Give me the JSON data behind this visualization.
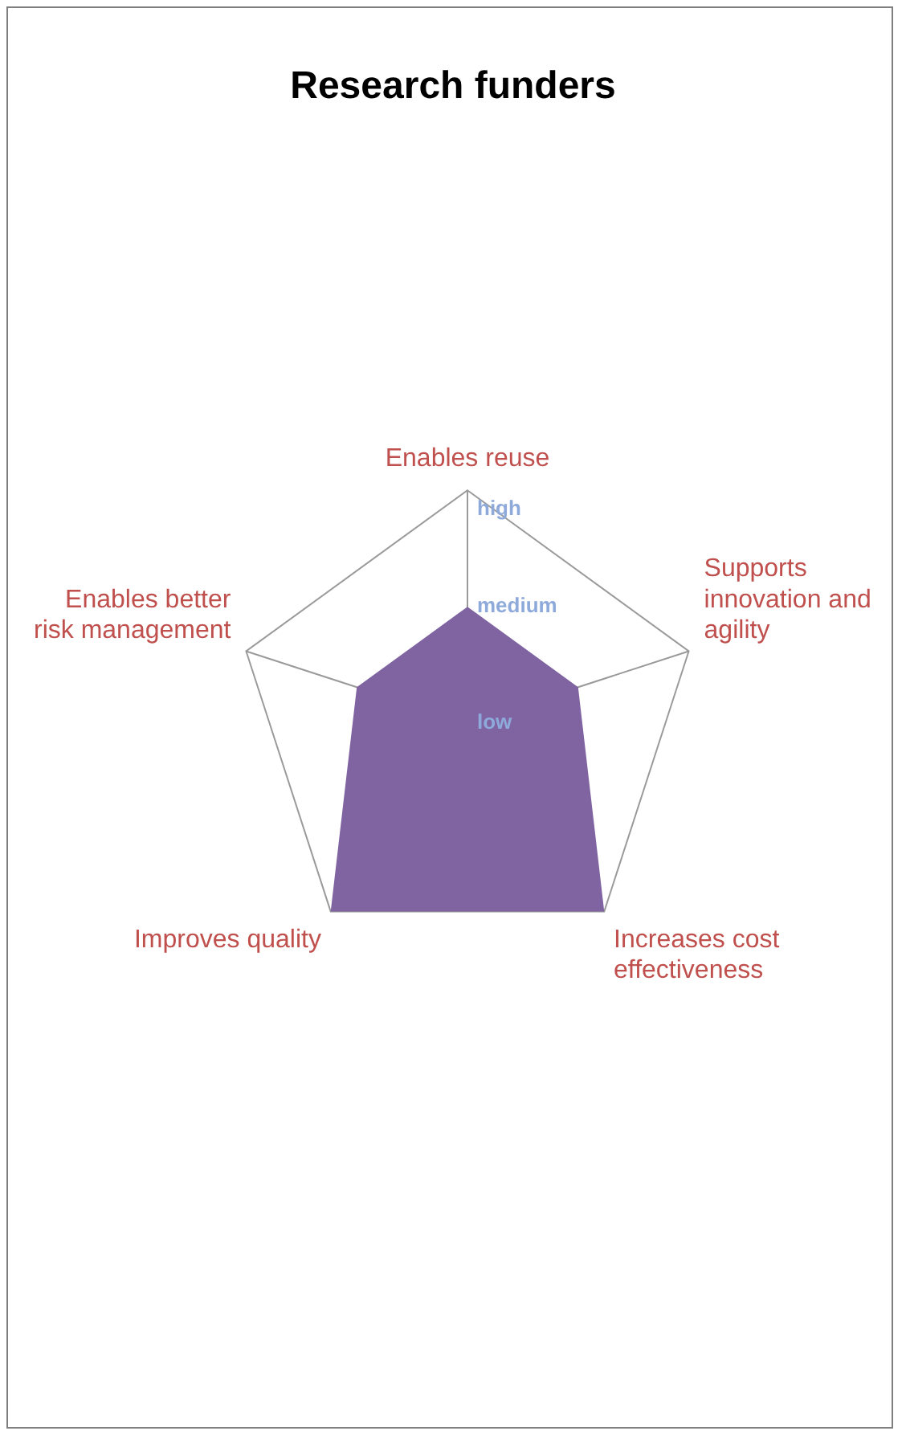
{
  "chart_data": {
    "type": "radar",
    "title": "Research funders",
    "categories": [
      "Enables reuse",
      "Supports innovation and agility",
      "Increases cost effectiveness",
      "Improves quality",
      "Enables better risk management"
    ],
    "series": [
      {
        "color": "#8064a2",
        "values": [
          1,
          1,
          2,
          2,
          1
        ]
      }
    ],
    "ylim": [
      0,
      2
    ],
    "yticks": [
      {
        "value": 0,
        "label": "low"
      },
      {
        "value": 1,
        "label": "medium"
      },
      {
        "value": 2,
        "label": "high"
      }
    ],
    "legend": false
  }
}
